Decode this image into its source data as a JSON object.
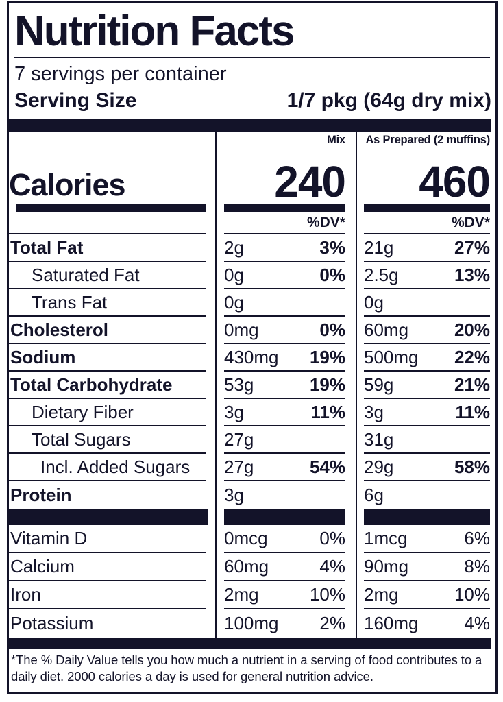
{
  "colors": {
    "ink": "#131329",
    "background": "#ffffff"
  },
  "label": {
    "title": "Nutrition Facts",
    "servings_per_container": "7 servings per container",
    "serving_size": {
      "label": "Serving Size",
      "value": "1/7 pkg (64g dry mix)"
    },
    "calories": {
      "label": "Calories",
      "dv_header": "%DV*",
      "columns": [
        {
          "header": "Mix",
          "value": "240"
        },
        {
          "header": "As Prepared (2 muffins)",
          "value": "460"
        }
      ]
    },
    "nutrients": [
      {
        "name": "Total Fat",
        "style": "bold",
        "indent": 0,
        "mix_amount": "2g",
        "mix_dv": "3%",
        "prep_amount": "21g",
        "prep_dv": "27%"
      },
      {
        "name": "Saturated Fat",
        "style": "regular",
        "indent": 1,
        "mix_amount": "0g",
        "mix_dv": "0%",
        "prep_amount": "2.5g",
        "prep_dv": "13%"
      },
      {
        "name": "Trans Fat",
        "style": "regular",
        "indent": 1,
        "mix_amount": "0g",
        "mix_dv": "",
        "prep_amount": "0g",
        "prep_dv": ""
      },
      {
        "name": "Cholesterol",
        "style": "bold",
        "indent": 0,
        "mix_amount": "0mg",
        "mix_dv": "0%",
        "prep_amount": "60mg",
        "prep_dv": "20%"
      },
      {
        "name": "Sodium",
        "style": "bold",
        "indent": 0,
        "mix_amount": "430mg",
        "mix_dv": "19%",
        "prep_amount": "500mg",
        "prep_dv": "22%"
      },
      {
        "name": "Total Carbohydrate",
        "style": "bold",
        "indent": 0,
        "mix_amount": "53g",
        "mix_dv": "19%",
        "prep_amount": "59g",
        "prep_dv": "21%"
      },
      {
        "name": "Dietary Fiber",
        "style": "regular",
        "indent": 1,
        "mix_amount": "3g",
        "mix_dv": "11%",
        "prep_amount": "3g",
        "prep_dv": "11%"
      },
      {
        "name": "Total Sugars",
        "style": "regular",
        "indent": 1,
        "mix_amount": "27g",
        "mix_dv": "",
        "prep_amount": "31g",
        "prep_dv": ""
      },
      {
        "name": "Incl. Added Sugars",
        "style": "regular",
        "indent": 2,
        "mix_amount": "27g",
        "mix_dv": "54%",
        "prep_amount": "29g",
        "prep_dv": "58%"
      },
      {
        "name": "Protein",
        "style": "bold",
        "indent": 0,
        "mix_amount": "3g",
        "mix_dv": "",
        "prep_amount": "6g",
        "prep_dv": ""
      }
    ],
    "micronutrients": [
      {
        "name": "Vitamin D",
        "mix_amount": "0mcg",
        "mix_dv": "0%",
        "prep_amount": "1mcg",
        "prep_dv": "6%"
      },
      {
        "name": "Calcium",
        "mix_amount": "60mg",
        "mix_dv": "4%",
        "prep_amount": "90mg",
        "prep_dv": "8%"
      },
      {
        "name": "Iron",
        "mix_amount": "2mg",
        "mix_dv": "10%",
        "prep_amount": "2mg",
        "prep_dv": "10%"
      },
      {
        "name": "Potassium",
        "mix_amount": "100mg",
        "mix_dv": "2%",
        "prep_amount": "160mg",
        "prep_dv": "4%"
      }
    ],
    "footnote": "*The % Daily Value tells you how much a nutrient in a serving of food contributes to a daily diet. 2000 calories a day is used for general nutrition advice."
  }
}
